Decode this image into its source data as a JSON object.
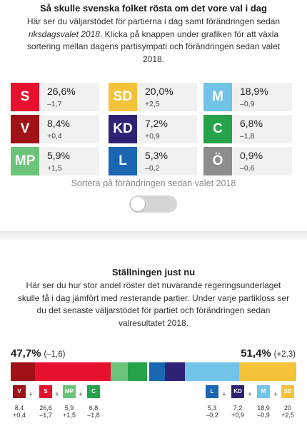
{
  "header": {
    "title": "Så skulle svenska folket rösta om det vore val i dag",
    "intro_before_em": "Här ser du väljarstödet för partierna i dag samt förändringen sedan ",
    "intro_em": "riksdagsvalet 2018",
    "intro_after_em": ". Klicka på knappen under grafiken för att växla sortering mellan dagens partisympati och förändringen sedan valet 2018."
  },
  "parties": [
    {
      "abbr": "S",
      "percent": "26,6%",
      "change": "–1,7",
      "color": "#e8112d"
    },
    {
      "abbr": "SD",
      "percent": "20,0%",
      "change": "+2,5",
      "color": "#f5c23a"
    },
    {
      "abbr": "M",
      "percent": "18,9%",
      "change": "–0,9",
      "color": "#72c3e8"
    },
    {
      "abbr": "V",
      "percent": "8,4%",
      "change": "+0,4",
      "color": "#a01118"
    },
    {
      "abbr": "KD",
      "percent": "7,2%",
      "change": "+0,9",
      "color": "#2d2275"
    },
    {
      "abbr": "C",
      "percent": "6,8%",
      "change": "–1,8",
      "color": "#26a34a"
    },
    {
      "abbr": "MP",
      "percent": "5,9%",
      "change": "+1,5",
      "color": "#6cc47a"
    },
    {
      "abbr": "L",
      "percent": "5,3%",
      "change": "–0,2",
      "color": "#1a66b0"
    },
    {
      "abbr": "Ö",
      "percent": "0,9%",
      "change": "–0,6",
      "color": "#8c8c8c"
    }
  ],
  "sort": {
    "label": "Sortera på förändringen sedan valet 2018",
    "toggle_on": false
  },
  "standings": {
    "title": "Ställningen just nu",
    "text": "Här ser du hur stor andel röster det nuvarande regeringsunderlaget skulle få i dag jämfört med resterande partier. Under varje partikloss ser du det senaste väljarstödet för partiet och förändringen sedan valresultatet 2018.",
    "left_total": "47,7%",
    "left_change": "(–1,6)",
    "right_total": "51,4%",
    "right_change": "(+2,3)",
    "bar_total_percent": 100,
    "left_bloc": [
      {
        "abbr": "V",
        "value": "8,4",
        "change": "+0,4",
        "share": 8.4,
        "color": "#a01118"
      },
      {
        "abbr": "S",
        "value": "26,6",
        "change": "–1,7",
        "share": 26.6,
        "color": "#e8112d"
      },
      {
        "abbr": "MP",
        "value": "5,9",
        "change": "+1,5",
        "share": 5.9,
        "color": "#6cc47a"
      },
      {
        "abbr": "C",
        "value": "6,8",
        "change": "–1,8",
        "share": 6.8,
        "color": "#26a34a"
      }
    ],
    "right_bloc": [
      {
        "abbr": "L",
        "value": "5,3",
        "change": "–0,2",
        "share": 5.3,
        "color": "#1a66b0"
      },
      {
        "abbr": "KD",
        "value": "7,2",
        "change": "+0,9",
        "share": 7.2,
        "color": "#2d2275"
      },
      {
        "abbr": "M",
        "value": "18,9",
        "change": "–0,9",
        "share": 18.9,
        "color": "#72c3e8"
      },
      {
        "abbr": "SD",
        "value": "20",
        "change": "+2,5",
        "share": 20.0,
        "color": "#f5c23a"
      }
    ],
    "plus_sign": "+"
  }
}
